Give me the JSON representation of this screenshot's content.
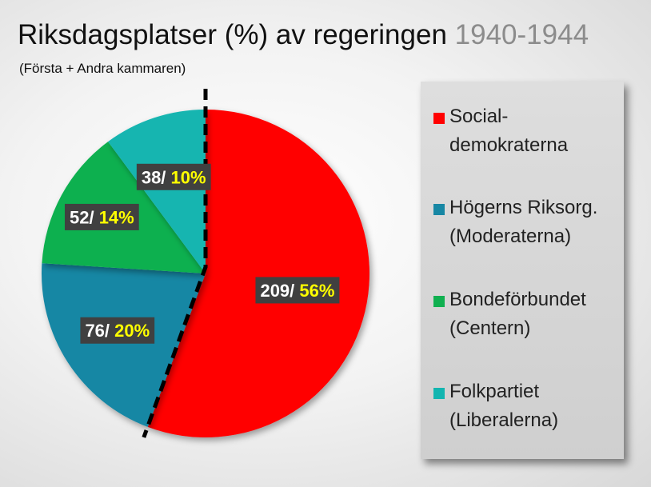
{
  "title_main": "Riksdagsplatser (%) av regeringen",
  "title_years": "1940-1944",
  "subtitle": "(Första + Andra kammaren)",
  "chart_data": {
    "type": "pie",
    "title": "Riksdagsplatser (%) av regeringen 1940-1944",
    "subtitle": "(Första + Andra kammaren)",
    "start_angle_deg": 0,
    "direction": "clockwise",
    "legend_position": "right",
    "slices": [
      {
        "legend": [
          "Social-",
          "demokraterna"
        ],
        "seats": 209,
        "percent": 56,
        "seats_label": "209/",
        "percent_label": "56%",
        "color": "#ff0000"
      },
      {
        "legend": [
          "Högerns Riksorg.",
          "(Moderaterna)"
        ],
        "seats": 76,
        "percent": 20,
        "seats_label": "76/",
        "percent_label": "20%",
        "color": "#1787a4"
      },
      {
        "legend": [
          "Bondeförbundet",
          "(Centern)"
        ],
        "seats": 52,
        "percent": 14,
        "seats_label": "52/",
        "percent_label": "14%",
        "color": "#10b050"
      },
      {
        "legend": [
          "Folkpartiet",
          "(Liberalerna)"
        ],
        "seats": 38,
        "percent": 10,
        "seats_label": "38/",
        "percent_label": "10%",
        "color": "#12b5b0"
      }
    ],
    "label_box_color": "#404040",
    "label_seats_color": "#ffffff",
    "label_percent_color": "#ffff00",
    "divider": "dashed line separating Socialdemokraterna from the other parties"
  }
}
